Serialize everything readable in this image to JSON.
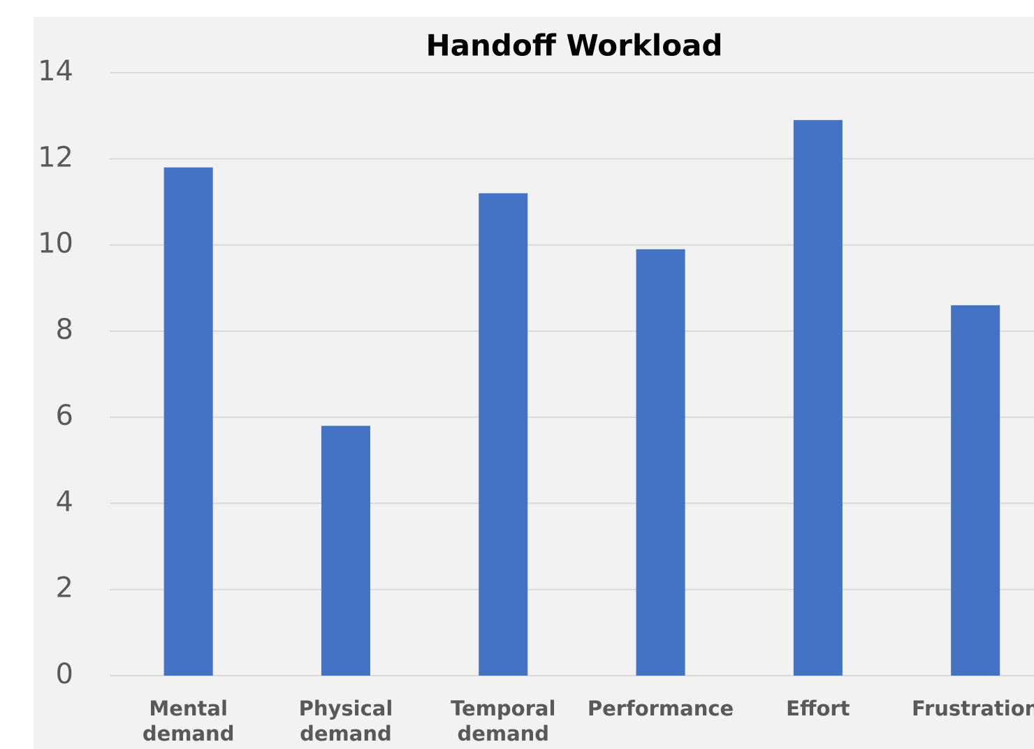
{
  "chart_data": {
    "type": "bar",
    "title": "Handoff Workload",
    "categories": [
      "Mental demand",
      "Physical demand",
      "Temporal demand",
      "Performance",
      "Effort",
      "Frustration"
    ],
    "values": [
      11.8,
      5.8,
      11.2,
      9.9,
      12.9,
      8.6
    ],
    "color": "#4472c4",
    "ylim": [
      0,
      14
    ],
    "yticks": [
      0,
      2,
      4,
      6,
      8,
      10,
      12,
      14
    ],
    "grid": true
  }
}
